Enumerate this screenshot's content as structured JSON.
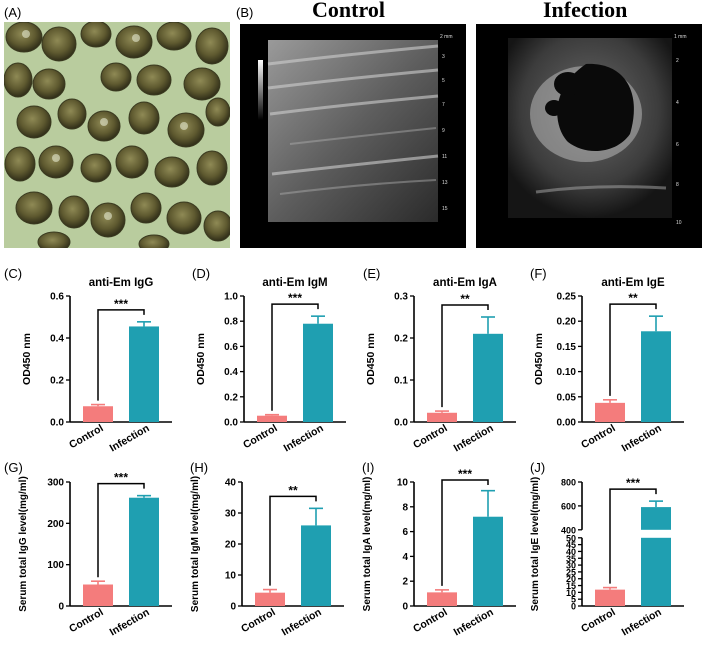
{
  "panels": {
    "a": "(A)",
    "b": "(B)",
    "c": "(C)",
    "d": "(D)",
    "e": "(E)",
    "f": "(F)",
    "g": "(G)",
    "h": "(H)",
    "i": "(I)",
    "j": "(J)"
  },
  "ultrasound": {
    "control_title": "Control",
    "infection_title": "Infection",
    "control_scale": [
      "2 mm",
      "3",
      "5",
      "7",
      "9",
      "11",
      "13",
      "15"
    ],
    "infection_scale": [
      "1 mm",
      "2",
      "4",
      "6",
      "8",
      "10"
    ]
  },
  "colors": {
    "control": "#f47c7c",
    "infection": "#1f9fb1",
    "microscope_bg": "#b7c99a",
    "cyst": "#6b6a3d"
  },
  "chart_data": [
    {
      "id": "c",
      "type": "bar",
      "title": "anti-Em IgG",
      "xlabel": "",
      "ylabel": "OD450 nm",
      "categories": [
        "Control",
        "Infection"
      ],
      "values": [
        0.075,
        0.455
      ],
      "errors": [
        0.008,
        0.022
      ],
      "ylim": [
        0,
        0.6
      ],
      "yticks": [
        "0.0",
        "0.2",
        "0.4",
        "0.6"
      ],
      "yticks_val": [
        0,
        0.2,
        0.4,
        0.6
      ],
      "significance": "***"
    },
    {
      "id": "d",
      "type": "bar",
      "title": "anti-Em IgM",
      "xlabel": "",
      "ylabel": "OD450 nm",
      "categories": [
        "Control",
        "Infection"
      ],
      "values": [
        0.05,
        0.78
      ],
      "errors": [
        0.008,
        0.06
      ],
      "ylim": [
        0,
        1.0
      ],
      "yticks": [
        "0.0",
        "0.2",
        "0.4",
        "0.6",
        "0.8",
        "1.0"
      ],
      "yticks_val": [
        0,
        0.2,
        0.4,
        0.6,
        0.8,
        1.0
      ],
      "significance": "***"
    },
    {
      "id": "e",
      "type": "bar",
      "title": "anti-Em IgA",
      "xlabel": "",
      "ylabel": "OD450 nm",
      "categories": [
        "Control",
        "Infection"
      ],
      "values": [
        0.022,
        0.21
      ],
      "errors": [
        0.004,
        0.04
      ],
      "ylim": [
        0,
        0.3
      ],
      "yticks": [
        "0.0",
        "0.1",
        "0.2",
        "0.3"
      ],
      "yticks_val": [
        0,
        0.1,
        0.2,
        0.3
      ],
      "significance": "**"
    },
    {
      "id": "f",
      "type": "bar",
      "title": "anti-Em IgE",
      "xlabel": "",
      "ylabel": "OD450 nm",
      "categories": [
        "Control",
        "Infection"
      ],
      "values": [
        0.038,
        0.18
      ],
      "errors": [
        0.006,
        0.03
      ],
      "ylim": [
        0,
        0.25
      ],
      "yticks": [
        "0.00",
        "0.05",
        "0.10",
        "0.15",
        "0.20",
        "0.25"
      ],
      "yticks_val": [
        0,
        0.05,
        0.1,
        0.15,
        0.2,
        0.25
      ],
      "significance": "**"
    },
    {
      "id": "g",
      "type": "bar",
      "title": "",
      "xlabel": "",
      "ylabel": "Serum total IgG level(mg/ml)",
      "categories": [
        "Control",
        "Infection"
      ],
      "values": [
        52,
        262
      ],
      "errors": [
        8,
        5
      ],
      "ylim": [
        0,
        300
      ],
      "yticks": [
        "0",
        "100",
        "200",
        "300"
      ],
      "yticks_val": [
        0,
        100,
        200,
        300
      ],
      "significance": "***"
    },
    {
      "id": "h",
      "type": "bar",
      "title": "",
      "xlabel": "",
      "ylabel": "Serum total IgM level(mg/ml)",
      "categories": [
        "Control",
        "Infection"
      ],
      "values": [
        4.3,
        26
      ],
      "errors": [
        1.0,
        5.5
      ],
      "ylim": [
        0,
        40
      ],
      "yticks": [
        "0",
        "10",
        "20",
        "30",
        "40"
      ],
      "yticks_val": [
        0,
        10,
        20,
        30,
        40
      ],
      "significance": "**"
    },
    {
      "id": "i",
      "type": "bar",
      "title": "",
      "xlabel": "",
      "ylabel": "Serum total IgA level(mg/ml)",
      "categories": [
        "Control",
        "Infection"
      ],
      "values": [
        1.1,
        7.2
      ],
      "errors": [
        0.2,
        2.1
      ],
      "ylim": [
        0,
        10
      ],
      "yticks": [
        "0",
        "2",
        "4",
        "6",
        "8",
        "10"
      ],
      "yticks_val": [
        0,
        2,
        4,
        6,
        8,
        10
      ],
      "significance": "***"
    },
    {
      "id": "j",
      "type": "bar",
      "title": "",
      "xlabel": "",
      "ylabel": "Serum total IgE level(mg/ml)",
      "categories": [
        "Control",
        "Infection"
      ],
      "values": [
        12,
        590
      ],
      "errors": [
        1.5,
        50
      ],
      "ylim": [
        0,
        800
      ],
      "axis_break": [
        50,
        400
      ],
      "yticks": [
        "0",
        "5",
        "10",
        "15",
        "20",
        "25",
        "30",
        "35",
        "40",
        "45",
        "50",
        "400",
        "600",
        "800"
      ],
      "yticks_val": [
        0,
        5,
        10,
        15,
        20,
        25,
        30,
        35,
        40,
        45,
        50,
        400,
        600,
        800
      ],
      "significance": "***"
    }
  ]
}
